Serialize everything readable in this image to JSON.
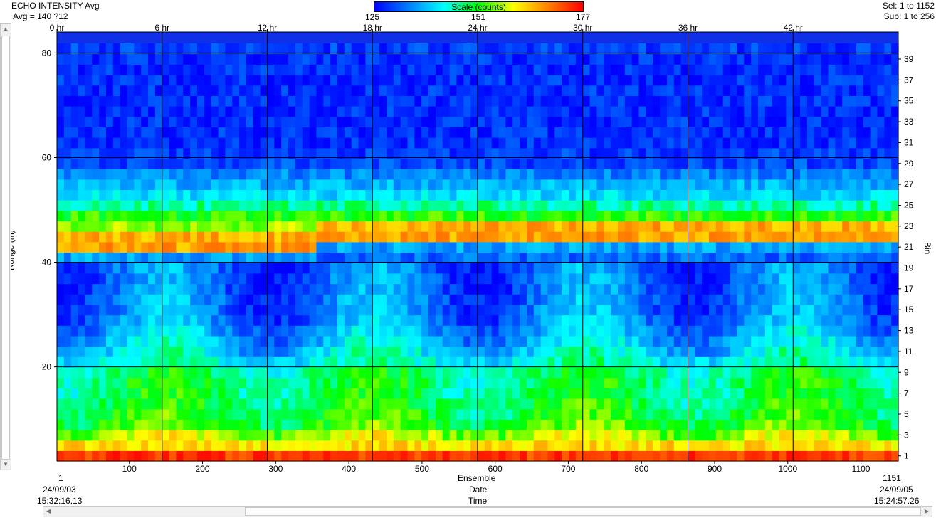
{
  "header": {
    "title": "ECHO INTENSITY Avg",
    "avg_text": "Avg = 140 ?12",
    "sel_text": "Sel: 1 to 1152",
    "sub_text": "Sub: 1 to 256"
  },
  "colorbar": {
    "label": "Scale (counts)",
    "ticks": [
      "125",
      "151",
      "177"
    ],
    "colors": [
      "#0000ff",
      "#0080ff",
      "#00ffff",
      "#00ff00",
      "#ffff00",
      "#ff8000",
      "#ff0000"
    ]
  },
  "chart_data": {
    "type": "heatmap",
    "title": "ECHO INTENSITY Avg",
    "ylabel": "Range (m)",
    "y2label": "Bin",
    "xlabel": "Ensemble",
    "xlabel2": "Date",
    "xlabel3": "Time",
    "ylim": [
      2,
      84
    ],
    "xlim": [
      1,
      1151
    ],
    "clim": [
      125,
      177
    ],
    "grid": true,
    "y_ticks": [
      20,
      40,
      60,
      80
    ],
    "y_tick_labels": [
      "20",
      "40",
      "60",
      "80"
    ],
    "bin_ticks": [
      1,
      3,
      5,
      7,
      9,
      11,
      13,
      15,
      17,
      19,
      21,
      23,
      25,
      27,
      29,
      31,
      33,
      35,
      37,
      39
    ],
    "bin_tick_labels": [
      "1",
      "3",
      "5",
      "7",
      "9",
      "11",
      "13",
      "15",
      "17",
      "19",
      "21",
      "23",
      "25",
      "27",
      "29",
      "31",
      "33",
      "35",
      "37",
      "39"
    ],
    "hour_ticks": [
      0,
      6,
      12,
      18,
      24,
      30,
      36,
      42
    ],
    "hour_tick_labels": [
      "0 hr",
      "6 hr",
      "12 hr",
      "18 hr",
      "24 hr",
      "30 hr",
      "36 hr",
      "42 hr"
    ],
    "ensemble_ticks": [
      100,
      200,
      300,
      400,
      500,
      600,
      700,
      800,
      900,
      1000,
      1100
    ],
    "ensemble_tick_labels": [
      "100",
      "200",
      "300",
      "400",
      "500",
      "600",
      "700",
      "800",
      "900",
      "1000",
      "1100"
    ],
    "ensemble_start": "1",
    "ensemble_end": "1151",
    "date_start": "24/09/03",
    "time_start": "15:32:16.13",
    "date_end": "24/09/05",
    "time_end": "15:24:57.26",
    "bins": 40,
    "columns": 120,
    "bin_profile": [
      173,
      162,
      157,
      152,
      150,
      149,
      148,
      148,
      147,
      143,
      140,
      138,
      136,
      134,
      133,
      133,
      132,
      132,
      132,
      136,
      166,
      165,
      156,
      152,
      146,
      140,
      137,
      134,
      130,
      129,
      128,
      128,
      128,
      128,
      128,
      128,
      128,
      128,
      128,
      129
    ]
  }
}
